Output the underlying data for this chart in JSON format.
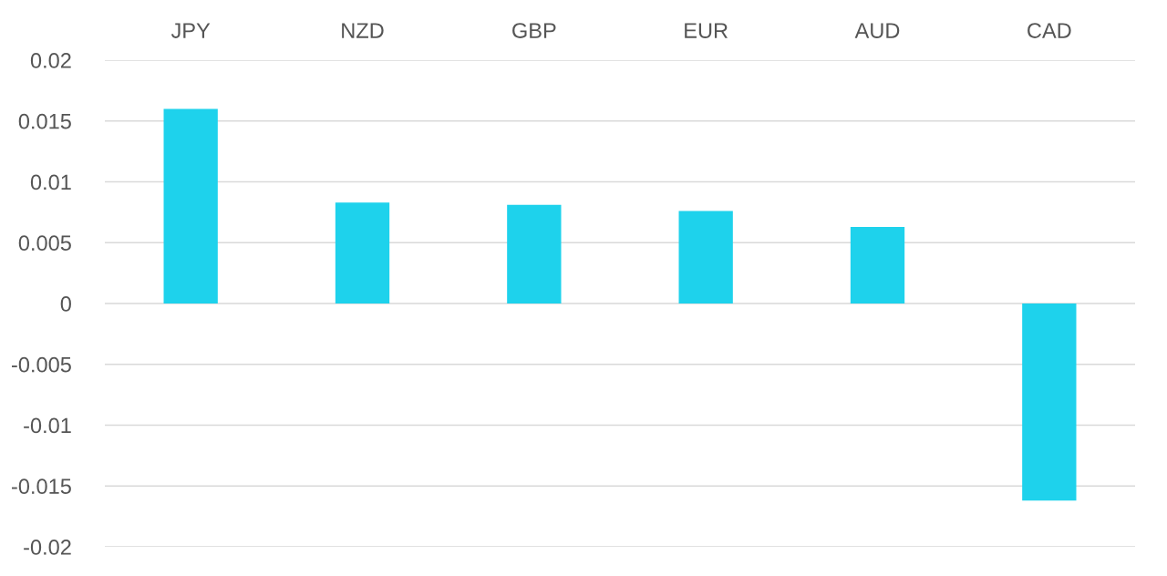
{
  "chart_data": {
    "type": "bar",
    "categories": [
      "JPY",
      "NZD",
      "GBP",
      "EUR",
      "AUD",
      "CAD"
    ],
    "values": [
      0.016,
      0.0083,
      0.0081,
      0.0076,
      0.0063,
      -0.0162
    ],
    "color": "#1ed2ec",
    "ylim": [
      -0.02,
      0.02
    ],
    "yticks": [
      -0.02,
      -0.015,
      -0.01,
      -0.005,
      0,
      0.005,
      0.01,
      0.015,
      0.02
    ],
    "grid": "y"
  }
}
